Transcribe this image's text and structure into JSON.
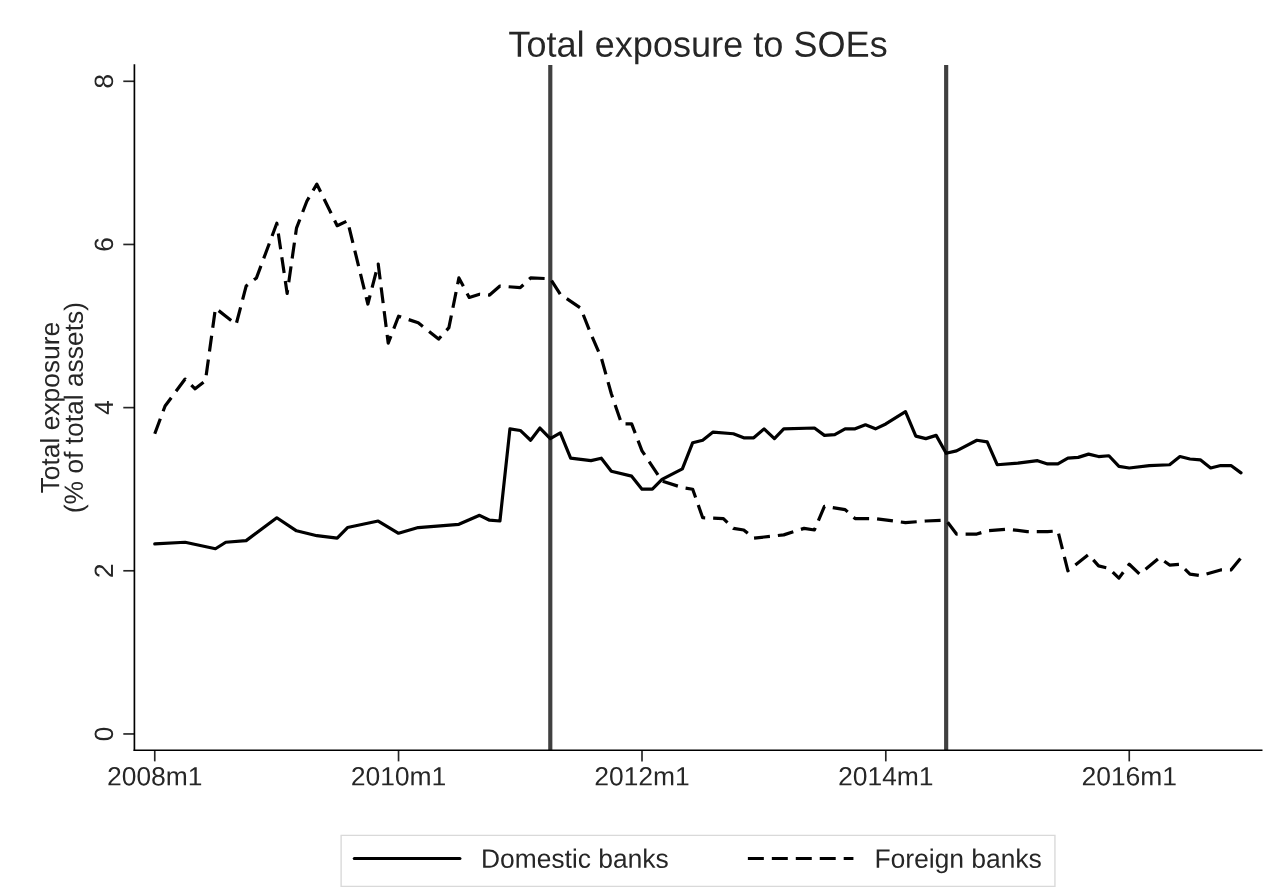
{
  "chart_data": {
    "type": "line",
    "title": "Total exposure to SOEs",
    "ylabel": "Total exposure\n(% of total assets)",
    "xlim": [
      "2007-11",
      "2017-02"
    ],
    "ylim": [
      -0.2,
      8.2
    ],
    "xticks": [
      {
        "value": "2008-01",
        "label": "2008m1"
      },
      {
        "value": "2010-01",
        "label": "2010m1"
      },
      {
        "value": "2012-01",
        "label": "2012m1"
      },
      {
        "value": "2014-01",
        "label": "2014m1"
      },
      {
        "value": "2016-01",
        "label": "2016m1"
      }
    ],
    "yticks": [
      0,
      2,
      4,
      6,
      8
    ],
    "grid": false,
    "legend": "bottom",
    "marker": "none",
    "ref_lines": [
      {
        "axis": "x",
        "value": "2011-04",
        "color": "#404040",
        "line_style": "solid"
      },
      {
        "axis": "x",
        "value": "2014-07",
        "color": "#404040",
        "line_style": "solid"
      }
    ],
    "series": [
      {
        "name": "Domestic banks",
        "color": "#000000",
        "line_style": "solid",
        "x": [
          "2008-01",
          "2008-04",
          "2008-07",
          "2008-08",
          "2008-10",
          "2009-01",
          "2009-03",
          "2009-05",
          "2009-07",
          "2009-08",
          "2009-11",
          "2010-01",
          "2010-03",
          "2010-07",
          "2010-09",
          "2010-10",
          "2010-11",
          "2010-12",
          "2011-01",
          "2011-02",
          "2011-03",
          "2011-04",
          "2011-05",
          "2011-06",
          "2011-08",
          "2011-09",
          "2011-10",
          "2011-12",
          "2012-01",
          "2012-02",
          "2012-03",
          "2012-05",
          "2012-06",
          "2012-07",
          "2012-08",
          "2012-10",
          "2012-11",
          "2012-12",
          "2013-01",
          "2013-02",
          "2013-03",
          "2013-06",
          "2013-07",
          "2013-08",
          "2013-09",
          "2013-10",
          "2013-11",
          "2013-12",
          "2014-01",
          "2014-03",
          "2014-04",
          "2014-05",
          "2014-06",
          "2014-07",
          "2014-08",
          "2014-10",
          "2014-11",
          "2014-12",
          "2015-02",
          "2015-04",
          "2015-05",
          "2015-06",
          "2015-07",
          "2015-08",
          "2015-09",
          "2015-10",
          "2015-11",
          "2015-12",
          "2016-01",
          "2016-03",
          "2016-05",
          "2016-06",
          "2016-07",
          "2016-08",
          "2016-09",
          "2016-10",
          "2016-11",
          "2016-12"
        ],
        "values": [
          2.33,
          2.35,
          2.27,
          2.35,
          2.37,
          2.65,
          2.49,
          2.43,
          2.4,
          2.53,
          2.61,
          2.46,
          2.53,
          2.57,
          2.68,
          2.62,
          2.61,
          3.74,
          3.72,
          3.6,
          3.75,
          3.62,
          3.69,
          3.38,
          3.35,
          3.38,
          3.22,
          3.16,
          3.0,
          3.0,
          3.12,
          3.25,
          3.57,
          3.6,
          3.7,
          3.68,
          3.63,
          3.63,
          3.74,
          3.62,
          3.74,
          3.75,
          3.66,
          3.67,
          3.74,
          3.74,
          3.79,
          3.74,
          3.8,
          3.95,
          3.65,
          3.62,
          3.66,
          3.44,
          3.47,
          3.6,
          3.58,
          3.3,
          3.32,
          3.35,
          3.31,
          3.31,
          3.38,
          3.39,
          3.43,
          3.4,
          3.41,
          3.28,
          3.26,
          3.29,
          3.3,
          3.4,
          3.37,
          3.36,
          3.26,
          3.29,
          3.29,
          3.2
        ]
      },
      {
        "name": "Foreign banks",
        "color": "#000000",
        "line_style": "dashed",
        "x": [
          "2008-01",
          "2008-02",
          "2008-04",
          "2008-05",
          "2008-06",
          "2008-07",
          "2008-08",
          "2008-09",
          "2008-10",
          "2008-11",
          "2009-01",
          "2009-02",
          "2009-03",
          "2009-04",
          "2009-05",
          "2009-07",
          "2009-08",
          "2009-10",
          "2009-11",
          "2009-12",
          "2010-01",
          "2010-03",
          "2010-05",
          "2010-06",
          "2010-07",
          "2010-08",
          "2010-09",
          "2010-10",
          "2010-11",
          "2011-01",
          "2011-02",
          "2011-04",
          "2011-05",
          "2011-07",
          "2011-08",
          "2011-09",
          "2011-10",
          "2011-11",
          "2011-12",
          "2012-01",
          "2012-03",
          "2012-05",
          "2012-06",
          "2012-07",
          "2012-09",
          "2012-10",
          "2012-11",
          "2012-12",
          "2013-03",
          "2013-05",
          "2013-06",
          "2013-07",
          "2013-09",
          "2013-10",
          "2013-12",
          "2014-03",
          "2014-05",
          "2014-07",
          "2014-08",
          "2014-10",
          "2014-11",
          "2015-01",
          "2015-03",
          "2015-05",
          "2015-06",
          "2015-07",
          "2015-09",
          "2015-10",
          "2015-11",
          "2015-12",
          "2016-01",
          "2016-02",
          "2016-04",
          "2016-05",
          "2016-06",
          "2016-07",
          "2016-08",
          "2016-10",
          "2016-11",
          "2016-12"
        ],
        "values": [
          3.68,
          4.02,
          4.35,
          4.23,
          4.33,
          5.22,
          5.12,
          5.02,
          5.49,
          5.59,
          6.26,
          5.4,
          6.2,
          6.53,
          6.74,
          6.23,
          6.29,
          5.27,
          5.76,
          4.79,
          5.12,
          5.04,
          4.84,
          4.98,
          5.59,
          5.35,
          5.39,
          5.38,
          5.49,
          5.47,
          5.59,
          5.58,
          5.39,
          5.22,
          4.9,
          4.61,
          4.17,
          3.8,
          3.8,
          3.47,
          3.1,
          3.02,
          3.0,
          2.65,
          2.64,
          2.52,
          2.5,
          2.4,
          2.44,
          2.52,
          2.5,
          2.79,
          2.75,
          2.64,
          2.64,
          2.59,
          2.61,
          2.62,
          2.45,
          2.45,
          2.49,
          2.51,
          2.48,
          2.48,
          2.49,
          2.0,
          2.2,
          2.06,
          2.03,
          1.91,
          2.08,
          1.96,
          2.16,
          2.07,
          2.08,
          1.96,
          1.94,
          2.01,
          2.01,
          2.16
        ]
      }
    ]
  }
}
